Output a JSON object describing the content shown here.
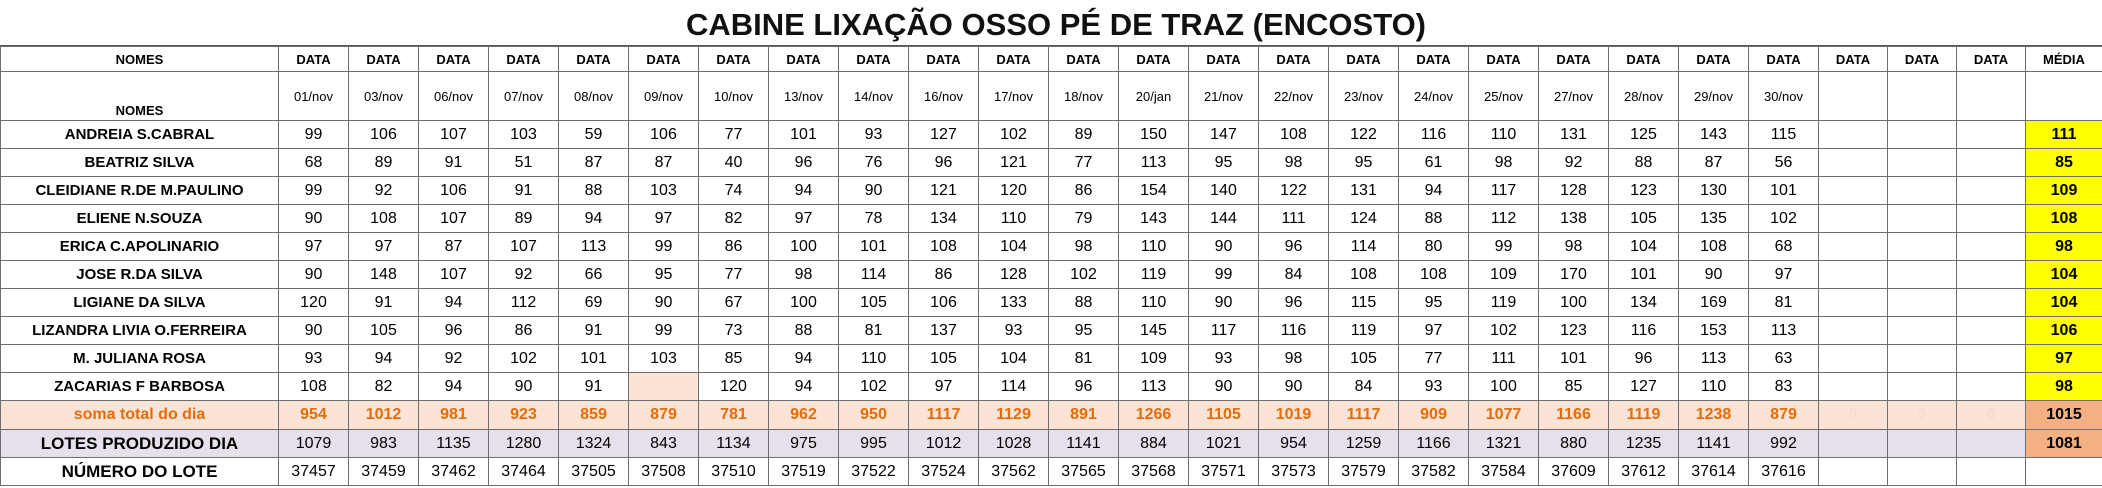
{
  "title": "CABINE LIXAÇÃO OSSO PÉ DE TRAZ (ENCOSTO)",
  "header": {
    "names_label": "NOMES",
    "names_label_2": "NOMES",
    "date_label": "DATA",
    "media_label": "MÉDIA",
    "dates": [
      "01/nov",
      "03/nov",
      "06/nov",
      "07/nov",
      "08/nov",
      "09/nov",
      "10/nov",
      "13/nov",
      "14/nov",
      "16/nov",
      "17/nov",
      "18/nov",
      "20/jan",
      "21/nov",
      "22/nov",
      "23/nov",
      "24/nov",
      "25/nov",
      "27/nov",
      "28/nov",
      "29/nov",
      "30/nov",
      "",
      "",
      ""
    ]
  },
  "rows": [
    {
      "name": "ANDREIA S.CABRAL",
      "values": [
        "99",
        "106",
        "107",
        "103",
        "59",
        "106",
        "77",
        "101",
        "93",
        "127",
        "102",
        "89",
        "150",
        "147",
        "108",
        "122",
        "116",
        "110",
        "131",
        "125",
        "143",
        "115",
        "",
        "",
        ""
      ],
      "media": "111"
    },
    {
      "name": "BEATRIZ SILVA",
      "values": [
        "68",
        "89",
        "91",
        "51",
        "87",
        "87",
        "40",
        "96",
        "76",
        "96",
        "121",
        "77",
        "113",
        "95",
        "98",
        "95",
        "61",
        "98",
        "92",
        "88",
        "87",
        "56",
        "",
        "",
        ""
      ],
      "media": "85"
    },
    {
      "name": "CLEIDIANE R.DE M.PAULINO",
      "values": [
        "99",
        "92",
        "106",
        "91",
        "88",
        "103",
        "74",
        "94",
        "90",
        "121",
        "120",
        "86",
        "154",
        "140",
        "122",
        "131",
        "94",
        "117",
        "128",
        "123",
        "130",
        "101",
        "",
        "",
        ""
      ],
      "media": "109"
    },
    {
      "name": "ELIENE N.SOUZA",
      "values": [
        "90",
        "108",
        "107",
        "89",
        "94",
        "97",
        "82",
        "97",
        "78",
        "134",
        "110",
        "79",
        "143",
        "144",
        "111",
        "124",
        "88",
        "112",
        "138",
        "105",
        "135",
        "102",
        "",
        "",
        ""
      ],
      "media": "108"
    },
    {
      "name": "ERICA C.APOLINARIO",
      "values": [
        "97",
        "97",
        "87",
        "107",
        "113",
        "99",
        "86",
        "100",
        "101",
        "108",
        "104",
        "98",
        "110",
        "90",
        "96",
        "114",
        "80",
        "99",
        "98",
        "104",
        "108",
        "68",
        "",
        "",
        ""
      ],
      "media": "98"
    },
    {
      "name": "JOSE R.DA SILVA",
      "values": [
        "90",
        "148",
        "107",
        "92",
        "66",
        "95",
        "77",
        "98",
        "114",
        "86",
        "128",
        "102",
        "119",
        "99",
        "84",
        "108",
        "108",
        "109",
        "170",
        "101",
        "90",
        "97",
        "",
        "",
        ""
      ],
      "media": "104"
    },
    {
      "name": "LIGIANE DA SILVA",
      "values": [
        "120",
        "91",
        "94",
        "112",
        "69",
        "90",
        "67",
        "100",
        "105",
        "106",
        "133",
        "88",
        "110",
        "90",
        "96",
        "115",
        "95",
        "119",
        "100",
        "134",
        "169",
        "81",
        "",
        "",
        ""
      ],
      "media": "104"
    },
    {
      "name": "LIZANDRA LIVIA O.FERREIRA",
      "values": [
        "90",
        "105",
        "96",
        "86",
        "91",
        "99",
        "73",
        "88",
        "81",
        "137",
        "93",
        "95",
        "145",
        "117",
        "116",
        "119",
        "97",
        "102",
        "123",
        "116",
        "153",
        "113",
        "",
        "",
        ""
      ],
      "media": "106"
    },
    {
      "name": "M. JULIANA ROSA",
      "values": [
        "93",
        "94",
        "92",
        "102",
        "101",
        "103",
        "85",
        "94",
        "110",
        "105",
        "104",
        "81",
        "109",
        "93",
        "98",
        "105",
        "77",
        "111",
        "101",
        "96",
        "113",
        "63",
        "",
        "",
        ""
      ],
      "media": "97"
    },
    {
      "name": "ZACARIAS F BARBOSA",
      "values": [
        "108",
        "82",
        "94",
        "90",
        "91",
        "",
        "120",
        "94",
        "102",
        "97",
        "114",
        "96",
        "113",
        "90",
        "90",
        "84",
        "93",
        "100",
        "85",
        "127",
        "110",
        "83",
        "",
        "",
        ""
      ],
      "media": "98"
    }
  ],
  "sum_row": {
    "label": "soma total  do dia",
    "values": [
      "954",
      "1012",
      "981",
      "923",
      "859",
      "879",
      "781",
      "962",
      "950",
      "1117",
      "1129",
      "891",
      "1266",
      "1105",
      "1019",
      "1117",
      "909",
      "1077",
      "1166",
      "1119",
      "1238",
      "879",
      "0",
      "0",
      "0"
    ],
    "media": "1015"
  },
  "lotes_row": {
    "label": "LOTES PRODUZIDO DIA",
    "values": [
      "1079",
      "983",
      "1135",
      "1280",
      "1324",
      "843",
      "1134",
      "975",
      "995",
      "1012",
      "1028",
      "1141",
      "884",
      "1021",
      "954",
      "1259",
      "1166",
      "1321",
      "880",
      "1235",
      "1141",
      "992",
      "",
      "",
      ""
    ],
    "media": "1081"
  },
  "numero_row": {
    "label": "NÚMERO DO LOTE",
    "values": [
      "37457",
      "37459",
      "37462",
      "37464",
      "37505",
      "37508",
      "37510",
      "37519",
      "37522",
      "37524",
      "37562",
      "37565",
      "37568",
      "37571",
      "37573",
      "37579",
      "37582",
      "37584",
      "37609",
      "37612",
      "37614",
      "37616",
      "",
      "",
      ""
    ],
    "media": ""
  },
  "colors": {
    "media_highlight": "#ffff00",
    "sum_text": "#e46c0a",
    "sum_bg": "#fbe4d5",
    "lotes_bg": "#e6e0ec",
    "total_media_bg": "#f4b083"
  }
}
